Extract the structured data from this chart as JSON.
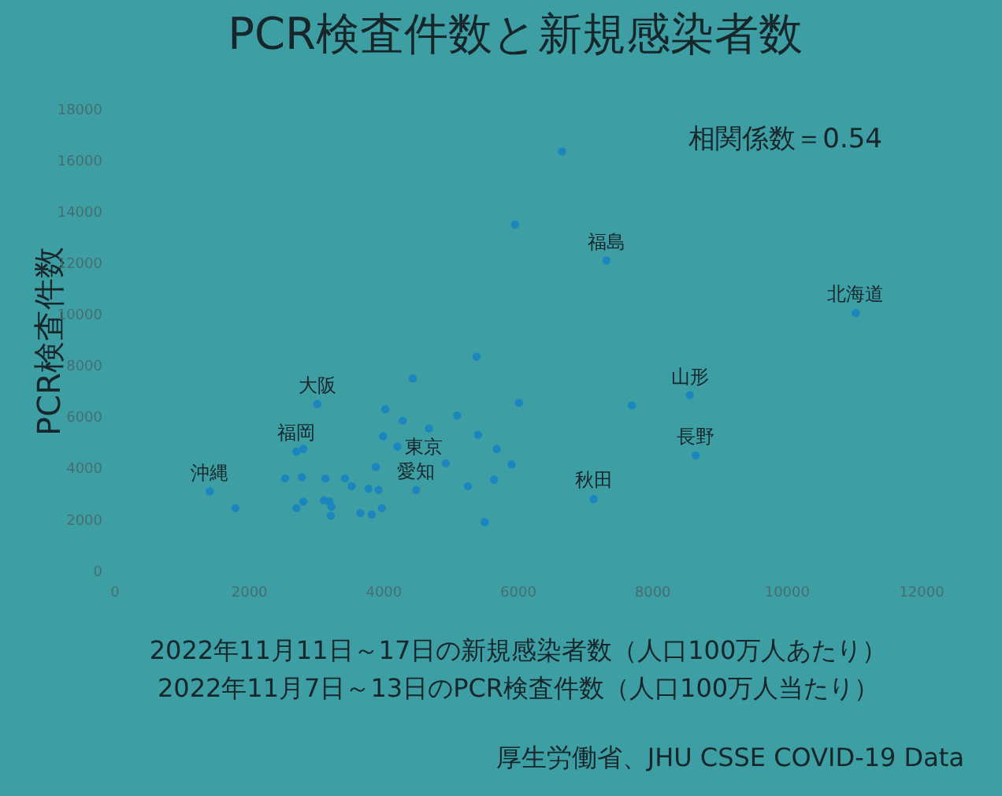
{
  "chart_data": {
    "type": "scatter",
    "title": "PCR検査件数と新規感染者数",
    "xlabel": "2022年11月11日～17日の新規感染者数（人口100万人あたり）",
    "ylabel": "PCR検査件数",
    "x": [
      1410,
      1790,
      3010,
      2700,
      2800,
      2530,
      2780,
      2700,
      2800,
      3130,
      3110,
      3190,
      3220,
      3210,
      3420,
      3520,
      3650,
      3770,
      3820,
      3920,
      3880,
      3970,
      3990,
      4020,
      4200,
      4280,
      4430,
      4480,
      4670,
      4920,
      5090,
      5250,
      5380,
      5400,
      5500,
      5680,
      5640,
      5900,
      6010,
      5950,
      6650,
      7310,
      11020,
      7690,
      8550,
      7120,
      8640
    ],
    "values": [
      3150,
      2500,
      6550,
      4700,
      4800,
      3650,
      3700,
      2500,
      2750,
      3650,
      2800,
      2750,
      2550,
      2200,
      3650,
      3350,
      2300,
      3250,
      2250,
      3200,
      4100,
      2500,
      5300,
      6350,
      4900,
      5900,
      7550,
      3200,
      5600,
      4250,
      6100,
      3350,
      8400,
      5350,
      1950,
      4800,
      3600,
      4200,
      6600,
      13550,
      16400,
      12150,
      10100,
      6500,
      6900,
      2850,
      4550
    ],
    "color": "#1b86bd",
    "marker": "circle",
    "xlim": [
      0,
      12000
    ],
    "xticks": [
      0,
      2000,
      4000,
      6000,
      8000,
      10000,
      12000
    ],
    "ylim": [
      0,
      18000
    ],
    "yticks": [
      0,
      2000,
      4000,
      6000,
      8000,
      10000,
      12000,
      14000,
      16000,
      18000
    ],
    "annotations": [
      "相関係数＝0.54",
      "2022年11月7日～13日のPCR検査件数（人口100万人当たり）",
      "厚生労働省、JHU CSSE COVID-19 Data",
      {
        "text": "沖縄",
        "x": 1410,
        "y": 3150
      },
      {
        "text": "大阪",
        "x": 3010,
        "y": 6550
      },
      {
        "text": "福岡",
        "x": 2700,
        "y": 4700
      },
      {
        "text": "東京",
        "x": 4200,
        "y": 4900
      },
      {
        "text": "愛知",
        "x": 4480,
        "y": 3200
      },
      {
        "text": "福島",
        "x": 7310,
        "y": 12150
      },
      {
        "text": "北海道",
        "x": 11020,
        "y": 10100
      },
      {
        "text": "山形",
        "x": 8550,
        "y": 6900
      },
      {
        "text": "長野",
        "x": 8640,
        "y": 4550
      },
      {
        "text": "秋田",
        "x": 7120,
        "y": 2850
      }
    ]
  }
}
